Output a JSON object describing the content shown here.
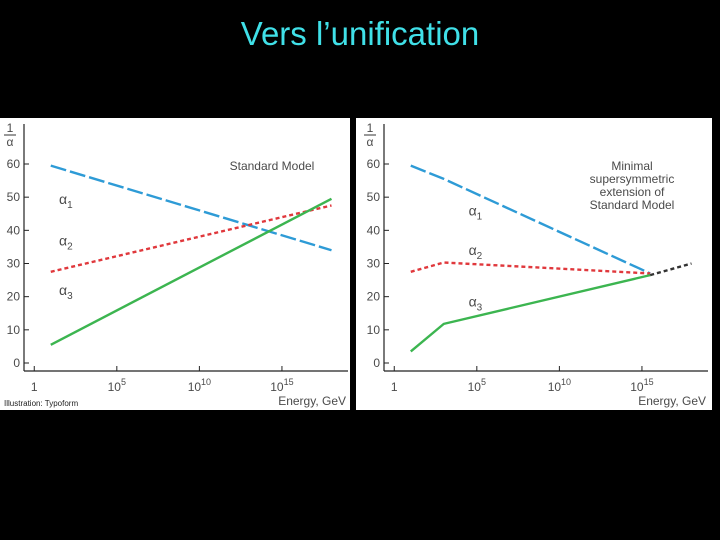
{
  "slide": {
    "title": "Vers l’unification"
  },
  "figure": {
    "credit": "Illustration: Typoform"
  },
  "chart_data": [
    {
      "type": "line",
      "annotation": "Standard Model",
      "ylabel_num": "1",
      "ylabel_den": "α",
      "xlabel": "Energy, GeV",
      "ylim": [
        0,
        60
      ],
      "yticks": [
        "0",
        "10",
        "20",
        "30",
        "40",
        "50",
        "60"
      ],
      "xticks": [
        {
          "base": "1",
          "exp": ""
        },
        {
          "base": "10",
          "exp": "5"
        },
        {
          "base": "10",
          "exp": "10"
        },
        {
          "base": "10",
          "exp": "15"
        }
      ],
      "xlim_log10": [
        -0.5,
        19
      ],
      "colors": {
        "alpha1": "#2e9bd6",
        "alpha2": "#e0383c",
        "alpha3": "#3cb550"
      },
      "series": [
        {
          "name": "α",
          "sub": "1",
          "style": "dashed",
          "color": "#2e9bd6",
          "points": [
            [
              1,
              59.5
            ],
            [
              18,
              34
            ]
          ],
          "label_at": [
            1.5,
            48
          ]
        },
        {
          "name": "α",
          "sub": "2",
          "style": "dotted",
          "color": "#e0383c",
          "points": [
            [
              1,
              27.5
            ],
            [
              18,
              47.5
            ]
          ],
          "label_at": [
            1.5,
            35.5
          ]
        },
        {
          "name": "α",
          "sub": "3",
          "style": "solid",
          "color": "#3cb550",
          "points": [
            [
              1,
              5.5
            ],
            [
              18,
              49.5
            ]
          ],
          "label_at": [
            1.5,
            20.5
          ]
        }
      ]
    },
    {
      "type": "line",
      "annotation": [
        "Minimal",
        "supersymmetric",
        "extension of",
        "Standard Model"
      ],
      "ylabel_num": "1",
      "ylabel_den": "α",
      "xlabel": "Energy, GeV",
      "ylim": [
        0,
        60
      ],
      "yticks": [
        "0",
        "10",
        "20",
        "30",
        "40",
        "50",
        "60"
      ],
      "xticks": [
        {
          "base": "1",
          "exp": ""
        },
        {
          "base": "10",
          "exp": "5"
        },
        {
          "base": "10",
          "exp": "10"
        },
        {
          "base": "10",
          "exp": "15"
        }
      ],
      "xlim_log10": [
        -0.5,
        19
      ],
      "colors": {
        "alpha1": "#2e9bd6",
        "alpha2": "#e0383c",
        "alpha3": "#3cb550",
        "unified": "#333333"
      },
      "series": [
        {
          "name": "α",
          "sub": "1",
          "style": "dashed",
          "color": "#2e9bd6",
          "points": [
            [
              1,
              59.5
            ],
            [
              3,
              55.5
            ],
            [
              15.5,
              27
            ]
          ],
          "label_at": [
            4.5,
            44.5
          ]
        },
        {
          "name": "α",
          "sub": "2",
          "style": "dotted",
          "color": "#e0383c",
          "points": [
            [
              1,
              27.5
            ],
            [
              3,
              30.3
            ],
            [
              15.5,
              27
            ]
          ],
          "label_at": [
            4.5,
            32.5
          ]
        },
        {
          "name": "α",
          "sub": "3",
          "style": "solid",
          "color": "#3cb550",
          "points": [
            [
              1,
              3.5
            ],
            [
              3,
              11.8
            ],
            [
              15.5,
              26.5
            ]
          ],
          "label_at": [
            4.5,
            17
          ]
        },
        {
          "name": "",
          "sub": "",
          "style": "dotted",
          "color": "#333333",
          "points": [
            [
              15.5,
              26.5
            ],
            [
              18,
              30
            ]
          ]
        }
      ]
    }
  ]
}
